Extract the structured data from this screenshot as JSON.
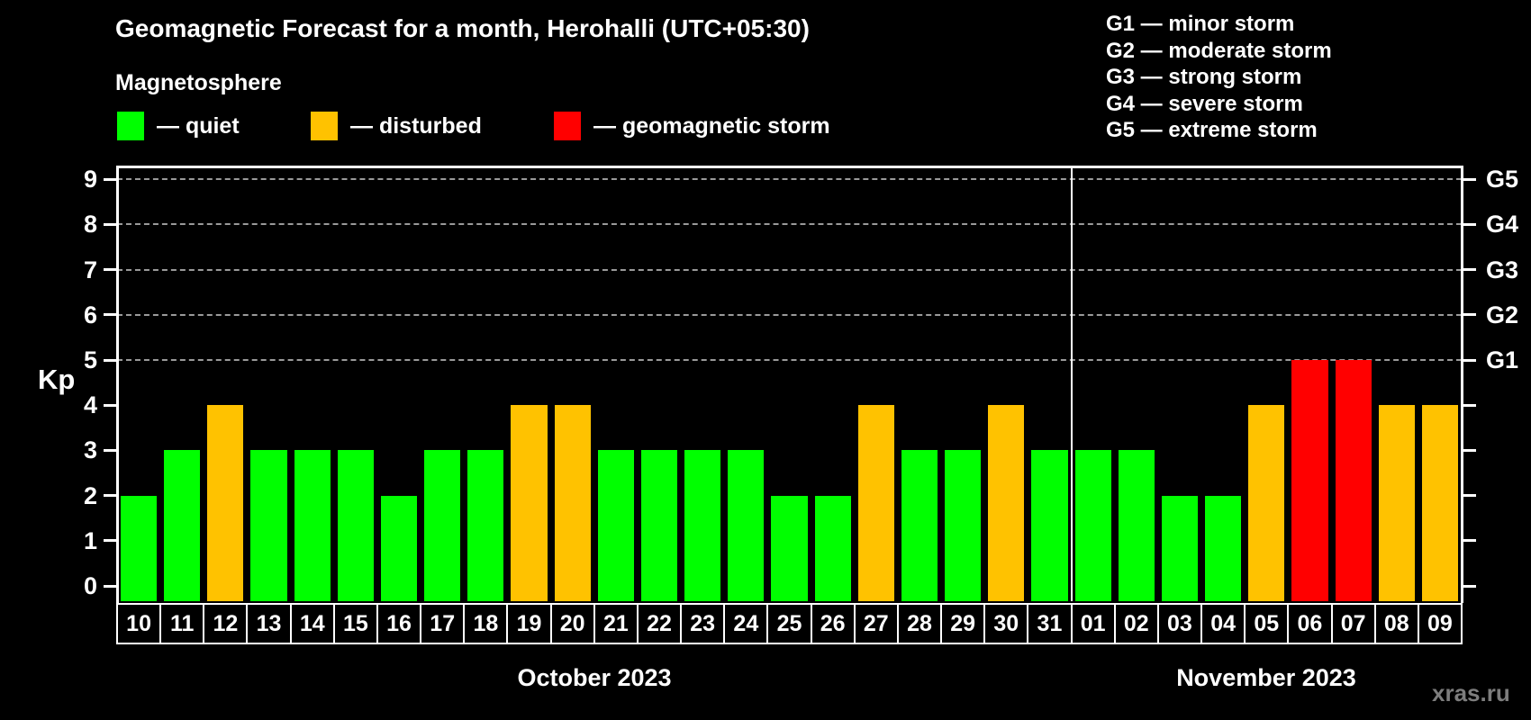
{
  "title": "Geomagnetic Forecast for a month, Herohalli (UTC+05:30)",
  "subtitle": "Magnetosphere",
  "legend": [
    {
      "status": "quiet",
      "label": "— quiet",
      "color": "#00ff00"
    },
    {
      "status": "disturbed",
      "label": "— disturbed",
      "color": "#ffc200"
    },
    {
      "status": "storm",
      "label": "— geomagnetic storm",
      "color": "#ff0000"
    }
  ],
  "g_legend": [
    "G1 — minor storm",
    "G2 — moderate storm",
    "G3 — strong storm",
    "G4 — severe storm",
    "G5 — extreme storm"
  ],
  "watermark": "xras.ru",
  "chart_data": {
    "type": "bar",
    "ylabel": "Kp",
    "ylim": [
      -0.35,
      9.3
    ],
    "yticks": [
      0,
      1,
      2,
      3,
      4,
      5,
      6,
      7,
      8,
      9
    ],
    "gridlines_at": [
      5,
      6,
      7,
      8,
      9
    ],
    "grid": "dashed-horizontal-G-levels-only",
    "legend_position": "top",
    "right_axis_labels": [
      {
        "kp": 5,
        "label": "G1"
      },
      {
        "kp": 6,
        "label": "G2"
      },
      {
        "kp": 7,
        "label": "G3"
      },
      {
        "kp": 8,
        "label": "G4"
      },
      {
        "kp": 9,
        "label": "G5"
      }
    ],
    "months": [
      {
        "label": "October 2023",
        "days": 22
      },
      {
        "label": "November 2023",
        "days": 9
      }
    ],
    "colors": {
      "quiet": "#00ff00",
      "disturbed": "#ffc200",
      "storm": "#ff0000"
    },
    "bars": [
      {
        "day": "10",
        "value": 2,
        "status": "quiet"
      },
      {
        "day": "11",
        "value": 3,
        "status": "quiet"
      },
      {
        "day": "12",
        "value": 4,
        "status": "disturbed"
      },
      {
        "day": "13",
        "value": 3,
        "status": "quiet"
      },
      {
        "day": "14",
        "value": 3,
        "status": "quiet"
      },
      {
        "day": "15",
        "value": 3,
        "status": "quiet"
      },
      {
        "day": "16",
        "value": 2,
        "status": "quiet"
      },
      {
        "day": "17",
        "value": 3,
        "status": "quiet"
      },
      {
        "day": "18",
        "value": 3,
        "status": "quiet"
      },
      {
        "day": "19",
        "value": 4,
        "status": "disturbed"
      },
      {
        "day": "20",
        "value": 4,
        "status": "disturbed"
      },
      {
        "day": "21",
        "value": 3,
        "status": "quiet"
      },
      {
        "day": "22",
        "value": 3,
        "status": "quiet"
      },
      {
        "day": "23",
        "value": 3,
        "status": "quiet"
      },
      {
        "day": "24",
        "value": 3,
        "status": "quiet"
      },
      {
        "day": "25",
        "value": 2,
        "status": "quiet"
      },
      {
        "day": "26",
        "value": 2,
        "status": "quiet"
      },
      {
        "day": "27",
        "value": 4,
        "status": "disturbed"
      },
      {
        "day": "28",
        "value": 3,
        "status": "quiet"
      },
      {
        "day": "29",
        "value": 3,
        "status": "quiet"
      },
      {
        "day": "30",
        "value": 4,
        "status": "disturbed"
      },
      {
        "day": "31",
        "value": 3,
        "status": "quiet"
      },
      {
        "day": "01",
        "value": 3,
        "status": "quiet"
      },
      {
        "day": "02",
        "value": 3,
        "status": "quiet"
      },
      {
        "day": "03",
        "value": 2,
        "status": "quiet"
      },
      {
        "day": "04",
        "value": 2,
        "status": "quiet"
      },
      {
        "day": "05",
        "value": 4,
        "status": "disturbed"
      },
      {
        "day": "06",
        "value": 5,
        "status": "storm"
      },
      {
        "day": "07",
        "value": 5,
        "status": "storm"
      },
      {
        "day": "08",
        "value": 4,
        "status": "disturbed"
      },
      {
        "day": "09",
        "value": 4,
        "status": "disturbed"
      }
    ]
  }
}
